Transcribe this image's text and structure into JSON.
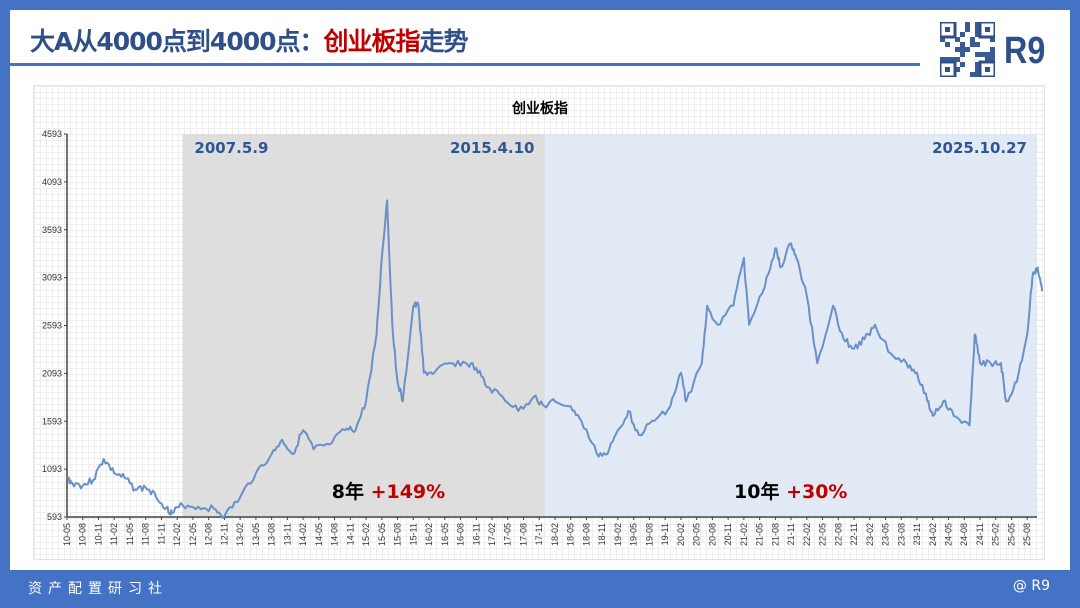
{
  "header": {
    "title_prefix": "大A从4000点到4000点：",
    "title_highlight": "创业板指",
    "title_suffix": "走势",
    "logo": "R9"
  },
  "footer": {
    "left": "资产配置研习社",
    "right": "@ R9"
  },
  "colors": {
    "frame": "#4472c4",
    "title": "#2f4f8a",
    "highlight": "#c00000",
    "line": "#6b8fc9",
    "grey_region": "#d9d9d9",
    "blue_region": "#dde6f4"
  },
  "chart_data": {
    "type": "line",
    "title": "创业板指",
    "ylim": [
      593,
      4593
    ],
    "yticks": [
      593,
      1093,
      1593,
      2093,
      2593,
      3093,
      3593,
      4093,
      4593
    ],
    "xticks": [
      "10-05",
      "10-08",
      "10-11",
      "11-02",
      "11-05",
      "11-08",
      "11-11",
      "12-02",
      "12-05",
      "12-08",
      "12-11",
      "13-02",
      "13-05",
      "13-08",
      "13-11",
      "14-02",
      "14-05",
      "14-08",
      "14-11",
      "15-02",
      "15-05",
      "15-08",
      "15-11",
      "16-02",
      "16-05",
      "16-08",
      "16-11",
      "17-02",
      "17-05",
      "17-08",
      "17-11",
      "18-02",
      "18-05",
      "18-08",
      "18-11",
      "19-02",
      "19-05",
      "19-08",
      "19-11",
      "20-02",
      "20-05",
      "20-08",
      "20-11",
      "21-02",
      "21-05",
      "21-08",
      "21-11",
      "22-02",
      "22-05",
      "22-08",
      "22-11",
      "23-02",
      "23-05",
      "23-08",
      "23-11",
      "24-02",
      "24-05",
      "24-08",
      "24-11",
      "25-02",
      "25-05",
      "25-08"
    ],
    "series": [
      {
        "points": [
          [
            "2010-05",
            1000
          ],
          [
            "2010-06",
            950
          ],
          [
            "2010-08",
            920
          ],
          [
            "2010-10",
            980
          ],
          [
            "2010-12",
            1200
          ],
          [
            "2011-02",
            1050
          ],
          [
            "2011-04",
            1000
          ],
          [
            "2011-06",
            880
          ],
          [
            "2011-08",
            900
          ],
          [
            "2011-10",
            800
          ],
          [
            "2011-12",
            690
          ],
          [
            "2012-01",
            630
          ],
          [
            "2012-03",
            720
          ],
          [
            "2012-06",
            700
          ],
          [
            "2012-09",
            680
          ],
          [
            "2012-11",
            600
          ],
          [
            "2013-02",
            800
          ],
          [
            "2013-05",
            1050
          ],
          [
            "2013-08",
            1250
          ],
          [
            "2013-10",
            1400
          ],
          [
            "2013-12",
            1250
          ],
          [
            "2014-02",
            1500
          ],
          [
            "2014-04",
            1300
          ],
          [
            "2014-07",
            1350
          ],
          [
            "2014-10",
            1500
          ],
          [
            "2014-12",
            1500
          ],
          [
            "2015-02",
            1800
          ],
          [
            "2015-04",
            2500
          ],
          [
            "2015-05",
            3300
          ],
          [
            "2015-06",
            3900
          ],
          [
            "2015-07",
            2600
          ],
          [
            "2015-08",
            2000
          ],
          [
            "2015-09",
            1800
          ],
          [
            "2015-11",
            2800
          ],
          [
            "2015-12",
            2800
          ],
          [
            "2016-01",
            2100
          ],
          [
            "2016-03",
            2100
          ],
          [
            "2016-06",
            2200
          ],
          [
            "2016-09",
            2200
          ],
          [
            "2016-11",
            2150
          ],
          [
            "2017-01",
            1950
          ],
          [
            "2017-04",
            1850
          ],
          [
            "2017-07",
            1700
          ],
          [
            "2017-10",
            1850
          ],
          [
            "2017-12",
            1750
          ],
          [
            "2018-02",
            1800
          ],
          [
            "2018-05",
            1750
          ],
          [
            "2018-07",
            1600
          ],
          [
            "2018-10",
            1250
          ],
          [
            "2018-12",
            1250
          ],
          [
            "2019-02",
            1500
          ],
          [
            "2019-04",
            1700
          ],
          [
            "2019-06",
            1450
          ],
          [
            "2019-09",
            1600
          ],
          [
            "2019-12",
            1750
          ],
          [
            "2020-02",
            2100
          ],
          [
            "2020-03",
            1800
          ],
          [
            "2020-06",
            2200
          ],
          [
            "2020-07",
            2800
          ],
          [
            "2020-09",
            2600
          ],
          [
            "2020-12",
            2800
          ],
          [
            "2021-02",
            3300
          ],
          [
            "2021-03",
            2600
          ],
          [
            "2021-06",
            3000
          ],
          [
            "2021-08",
            3400
          ],
          [
            "2021-09",
            3200
          ],
          [
            "2021-11",
            3450
          ],
          [
            "2021-12",
            3300
          ],
          [
            "2022-02",
            2900
          ],
          [
            "2022-04",
            2200
          ],
          [
            "2022-07",
            2800
          ],
          [
            "2022-09",
            2450
          ],
          [
            "2022-11",
            2350
          ],
          [
            "2023-01",
            2450
          ],
          [
            "2023-03",
            2600
          ],
          [
            "2023-06",
            2300
          ],
          [
            "2023-09",
            2200
          ],
          [
            "2023-11",
            2100
          ],
          [
            "2024-01",
            1800
          ],
          [
            "2024-02",
            1650
          ],
          [
            "2024-04",
            1800
          ],
          [
            "2024-06",
            1650
          ],
          [
            "2024-09",
            1550
          ],
          [
            "2024-10",
            2500
          ],
          [
            "2024-11",
            2200
          ],
          [
            "2025-01",
            2200
          ],
          [
            "2025-03",
            2200
          ],
          [
            "2025-04",
            1800
          ],
          [
            "2025-06",
            2000
          ],
          [
            "2025-08",
            2500
          ],
          [
            "2025-09",
            3100
          ],
          [
            "2025-10",
            3200
          ],
          [
            "2025-10-27",
            2950
          ]
        ]
      }
    ],
    "regions": [
      {
        "start": "2012-03",
        "end": "2017-12",
        "color": "grey",
        "label_start": "2007.5.9",
        "label_end": "2015.4.10",
        "summary_period": "8年",
        "summary_change": "+149%"
      },
      {
        "start": "2017-12",
        "end": "2025-10-27",
        "color": "blue",
        "label_end": "2025.10.27",
        "summary_period": "10年",
        "summary_change": "+30%"
      }
    ],
    "grid": true
  }
}
